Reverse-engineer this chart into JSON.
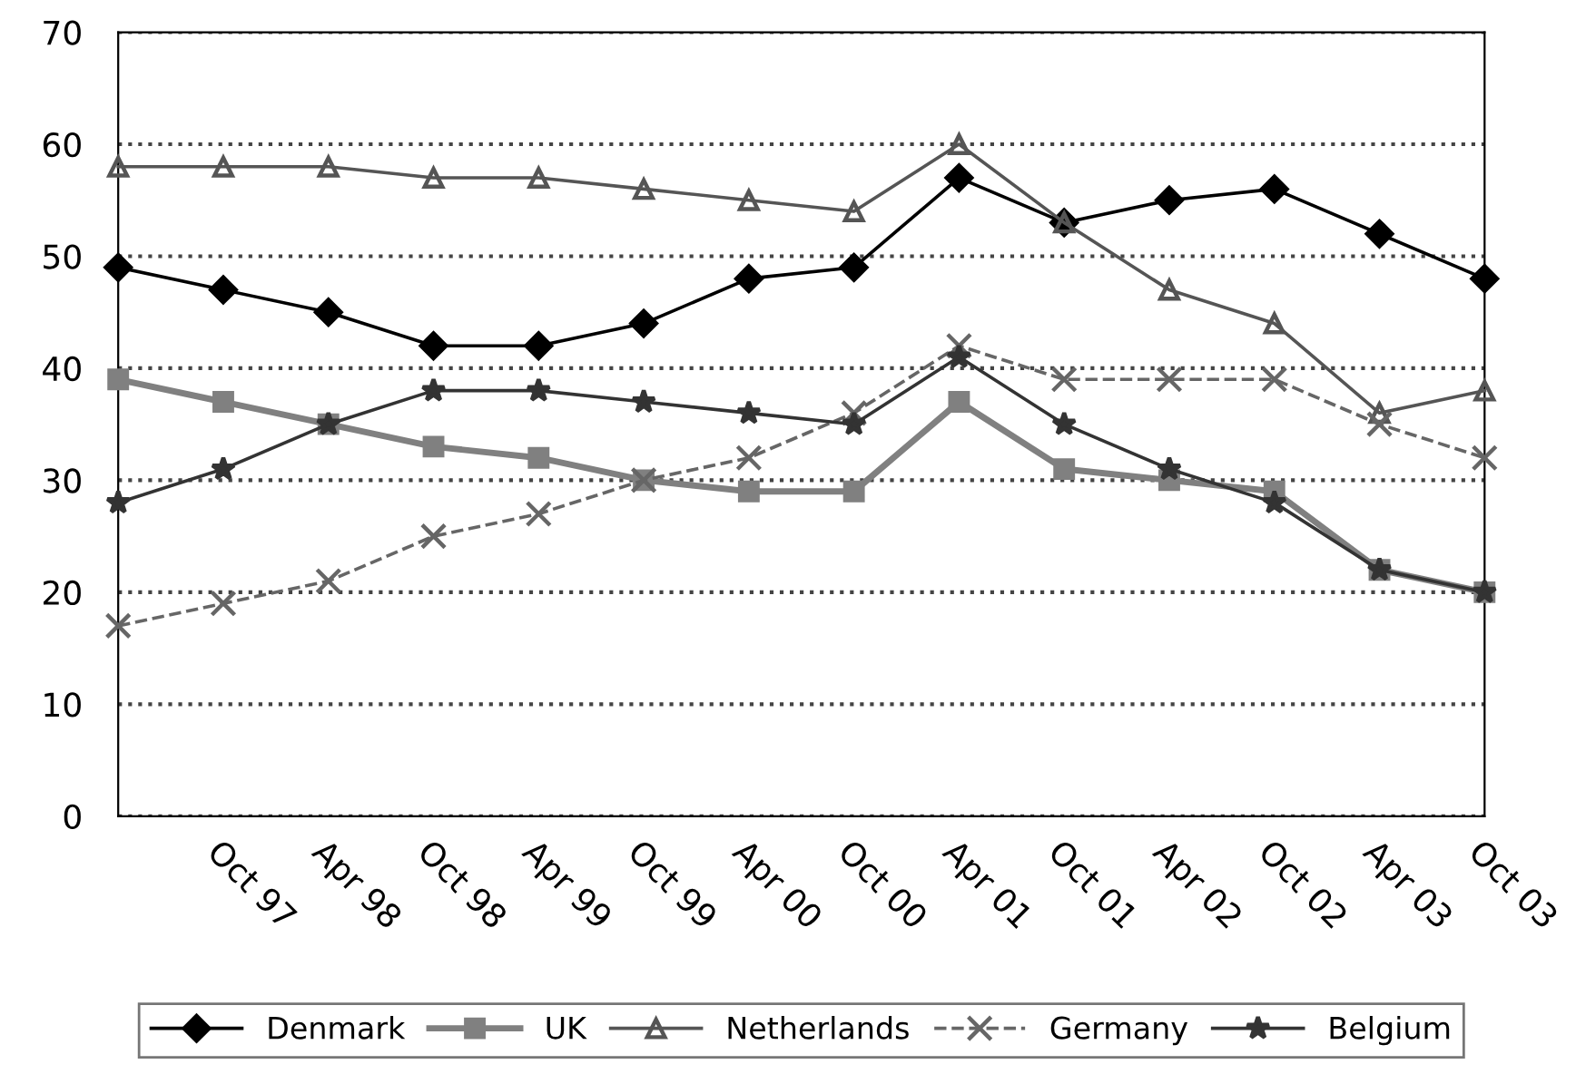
{
  "chart_data": {
    "type": "line",
    "categories": [
      null,
      "Oct 97",
      "Apr 98",
      "Oct 98",
      "Apr 99",
      "Oct 99",
      "Apr 00",
      "Oct 00",
      "Apr 01",
      "Oct 01",
      "Apr 02",
      "Oct 02",
      "Apr 03",
      "Oct 03"
    ],
    "series": [
      {
        "name": "Denmark",
        "color": "#000000",
        "marker": "diamond",
        "line_style": "solid",
        "values": [
          49,
          47,
          45,
          42,
          42,
          44,
          48,
          49,
          57,
          53,
          55,
          56,
          52,
          48
        ]
      },
      {
        "name": "UK",
        "color": "#808080",
        "marker": "square",
        "line_style": "solid",
        "values": [
          39,
          37,
          35,
          33,
          32,
          30,
          29,
          29,
          37,
          31,
          30,
          29,
          22,
          20
        ]
      },
      {
        "name": "Netherlands",
        "color": "#555555",
        "marker": "triangle",
        "line_style": "solid",
        "values": [
          58,
          58,
          58,
          57,
          57,
          56,
          55,
          54,
          60,
          53,
          47,
          44,
          36,
          38
        ]
      },
      {
        "name": "Germany",
        "color": "#666666",
        "marker": "cross",
        "line_style": "dashed",
        "values": [
          17,
          19,
          21,
          25,
          27,
          30,
          32,
          36,
          42,
          39,
          39,
          39,
          35,
          32
        ]
      },
      {
        "name": "Belgium",
        "color": "#333333",
        "marker": "star",
        "line_style": "solid",
        "values": [
          28,
          31,
          35,
          38,
          38,
          37,
          36,
          35,
          41,
          35,
          31,
          28,
          22,
          20
        ]
      }
    ],
    "ylim": [
      0,
      70
    ],
    "yticks": [
      0,
      10,
      20,
      30,
      40,
      50,
      60,
      70
    ],
    "grid": "y",
    "legend": "bottom"
  }
}
